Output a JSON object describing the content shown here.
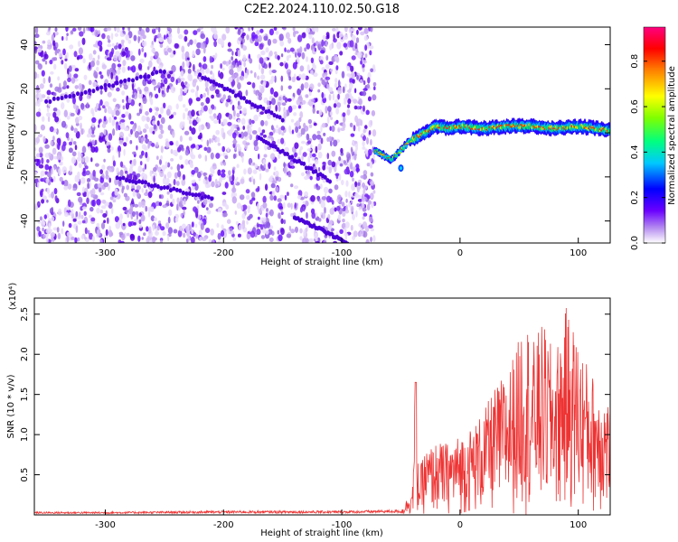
{
  "title": "C2E2.2024.110.02.50.G18",
  "chart_data": [
    {
      "type": "heatmap",
      "xlabel": "Height of straight line (km)",
      "ylabel": "Frequency (Hz)",
      "xlim": [
        -360,
        127
      ],
      "ylim": [
        -50,
        48
      ],
      "xticks": [
        -300,
        -200,
        -100,
        0,
        100
      ],
      "yticks": [
        -40,
        -20,
        0,
        20,
        40
      ],
      "colorbar": {
        "label": "Normalized spectral amplitude",
        "range": [
          0.0,
          0.95
        ],
        "ticks": [
          "0.0",
          "0.2",
          "0.4",
          "0.6",
          "0.8"
        ]
      },
      "noise_region_x": [
        -360,
        -72
      ],
      "doppler_trace": {
        "x": [
          -72,
          -65,
          -58,
          -50,
          -45,
          -40,
          -30,
          -20,
          -10,
          0,
          20,
          40,
          60,
          80,
          100,
          115,
          127
        ],
        "freq": [
          -8,
          -10,
          -12,
          -8,
          -5,
          -3,
          0,
          3,
          2,
          3,
          2,
          3,
          3,
          2,
          3,
          2,
          1
        ]
      }
    },
    {
      "type": "line",
      "xlabel": "Height of straight line (km)",
      "ylabel": "SNR (10 * v/v)",
      "y_multiplier": "(x10⁴)",
      "xlim": [
        -360,
        127
      ],
      "ylim": [
        0,
        2.7
      ],
      "xticks": [
        -300,
        -200,
        -100,
        0,
        100
      ],
      "yticks": [
        "0.5",
        "1.0",
        "1.5",
        "2.0",
        "2.5"
      ],
      "color": "#ee3333",
      "series": [
        {
          "x": [
            -360,
            -300,
            -200,
            -100,
            -50,
            -45,
            -40,
            -38,
            -35,
            -30,
            -20,
            -10,
            0,
            10,
            20,
            30,
            40,
            50,
            55,
            60,
            70,
            80,
            90,
            100,
            110,
            120,
            127
          ],
          "y": [
            0.03,
            0.03,
            0.04,
            0.04,
            0.05,
            0.2,
            0.4,
            1.6,
            0.5,
            0.8,
            0.9,
            0.9,
            1.0,
            1.1,
            1.3,
            1.6,
            1.8,
            2.2,
            2.7,
            2.1,
            2.4,
            2.0,
            2.6,
            2.2,
            1.8,
            1.6,
            1.4
          ]
        }
      ]
    }
  ]
}
